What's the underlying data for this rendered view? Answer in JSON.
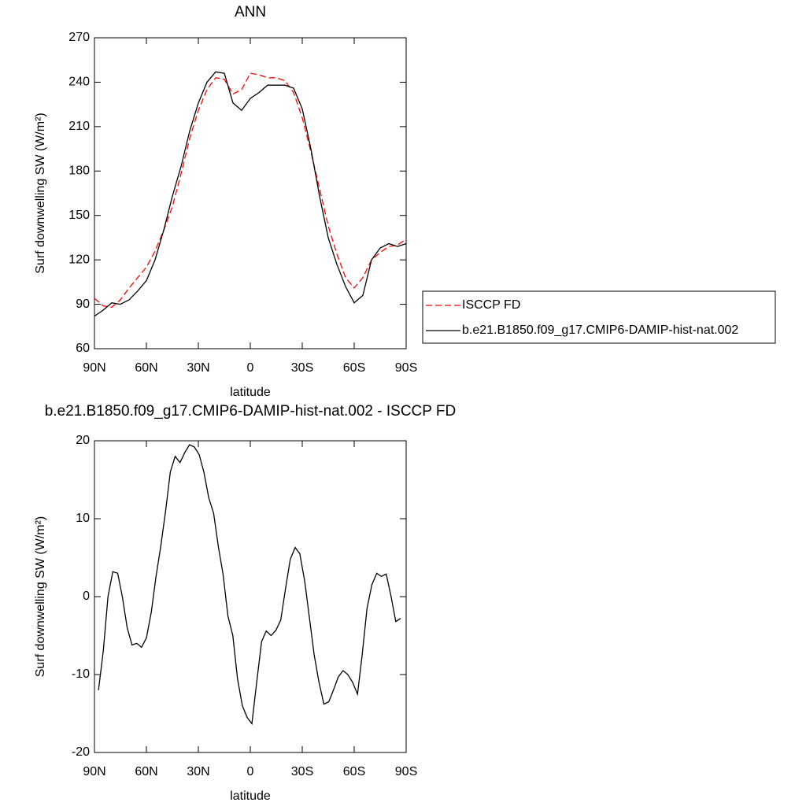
{
  "chart_data": [
    {
      "type": "line",
      "title": "ANN",
      "x_label": "latitude",
      "y_label": "Surf downwelling SW (W/m²)",
      "x": [
        90,
        85,
        80,
        75,
        70,
        65,
        60,
        55,
        50,
        45,
        40,
        35,
        30,
        25,
        20,
        15,
        10,
        5,
        0,
        -5,
        -10,
        -15,
        -20,
        -25,
        -30,
        -35,
        -40,
        -45,
        -50,
        -55,
        -60,
        -65,
        -70,
        -75,
        -80,
        -85,
        -90
      ],
      "series": [
        {
          "name": "ISCCP FD",
          "color": "#ff0000",
          "linestyle": "dashed",
          "values": [
            94,
            89,
            88,
            93,
            101,
            108,
            115,
            126,
            140,
            156,
            178,
            202,
            221,
            235,
            243,
            242,
            232,
            235,
            246,
            245,
            243,
            243,
            241,
            233,
            216,
            193,
            168,
            143,
            124,
            108,
            101,
            108,
            120,
            125,
            129,
            130,
            134
          ]
        },
        {
          "name": "b.e21.B1850.f09_g17.CMIP6-DAMIP-hist-nat.002",
          "color": "#000000",
          "linestyle": "solid",
          "values": [
            82,
            86,
            91,
            90,
            93,
            99,
            106,
            120,
            140,
            163,
            183,
            207,
            226,
            240,
            247,
            246,
            226,
            221,
            229,
            233,
            238,
            238,
            238,
            236,
            222,
            195,
            163,
            135,
            117,
            102,
            91,
            96,
            120,
            128,
            131,
            129,
            131
          ]
        }
      ],
      "xlim": [
        90,
        -90
      ],
      "xticks": [
        {
          "value": 90,
          "label": "90N"
        },
        {
          "value": 60,
          "label": "60N"
        },
        {
          "value": 30,
          "label": "30N"
        },
        0,
        {
          "value": -30,
          "label": "30S"
        },
        {
          "value": -60,
          "label": "60S"
        },
        {
          "value": -90,
          "label": "90S"
        }
      ],
      "ylim": [
        60,
        270
      ],
      "yticks": [
        60,
        90,
        120,
        150,
        180,
        210,
        240,
        270
      ],
      "legend": "outside-right"
    },
    {
      "type": "line",
      "title": "b.e21.B1850.f09_g17.CMIP6-DAMIP-hist-nat.002 - ISCCP FD",
      "x_label": "latitude",
      "y_label": "Surf downwelling SW (W/m²)",
      "x": [
        87.7,
        84.9,
        82.2,
        79.4,
        76.6,
        73.9,
        71.1,
        68.3,
        65.5,
        62.8,
        60.0,
        57.2,
        54.5,
        51.7,
        48.9,
        46.2,
        43.4,
        40.6,
        37.8,
        35.1,
        32.3,
        29.5,
        26.8,
        24.0,
        21.2,
        18.5,
        15.7,
        12.9,
        10.1,
        7.4,
        4.6,
        1.8,
        -0.9,
        -3.7,
        -6.5,
        -9.2,
        -12.0,
        -14.8,
        -17.6,
        -20.3,
        -23.1,
        -25.9,
        -28.6,
        -31.4,
        -34.2,
        -36.9,
        -39.7,
        -42.5,
        -45.3,
        -48.0,
        -50.8,
        -53.6,
        -56.3,
        -59.1,
        -61.9,
        -64.6,
        -67.4,
        -70.2,
        -73.0,
        -75.7,
        -78.5,
        -81.3,
        -84.0,
        -86.8
      ],
      "values": [
        -12,
        -7,
        0,
        3.2,
        3,
        0,
        -4,
        -6.2,
        -6,
        -6.5,
        -5.3,
        -2,
        2.5,
        6.5,
        11,
        16,
        18,
        17.2,
        18.5,
        19.5,
        19.2,
        18.2,
        16,
        12.7,
        10.7,
        6.5,
        2.8,
        -2.5,
        -5,
        -10.5,
        -14,
        -15.5,
        -16.3,
        -11,
        -5.8,
        -4.4,
        -5,
        -4.3,
        -3,
        1,
        4.8,
        6.3,
        5.5,
        2,
        -2.8,
        -7.5,
        -11,
        -13.8,
        -13.5,
        -12,
        -10.3,
        -9.5,
        -10,
        -11,
        -12.5,
        -7.5,
        -1.5,
        1.5,
        3,
        2.6,
        2.9,
        0,
        -3.2,
        -2.8
      ],
      "color": "#000000",
      "xlim": [
        90,
        -90
      ],
      "xticks": [
        {
          "value": 90,
          "label": "90N"
        },
        {
          "value": 60,
          "label": "60N"
        },
        {
          "value": 30,
          "label": "30N"
        },
        0,
        {
          "value": -30,
          "label": "30S"
        },
        {
          "value": -60,
          "label": "60S"
        },
        {
          "value": -90,
          "label": "90S"
        }
      ],
      "ylim": [
        -20,
        20
      ],
      "yticks": [
        -20,
        -10,
        0,
        10,
        20
      ]
    }
  ]
}
